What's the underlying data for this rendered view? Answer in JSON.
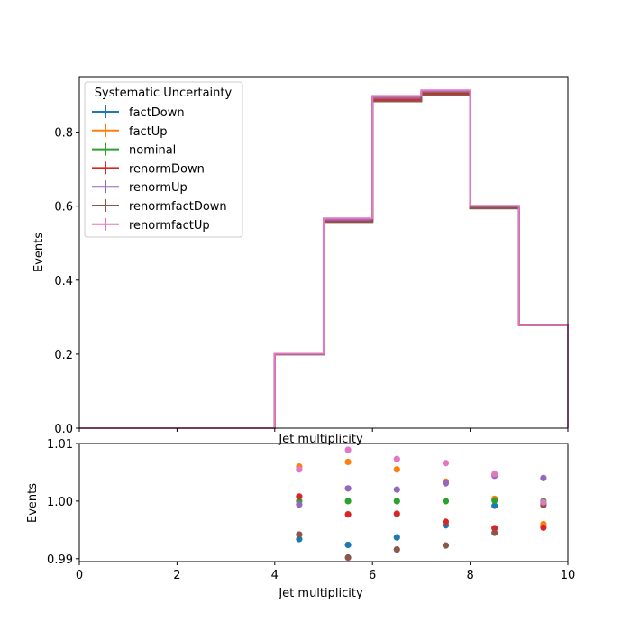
{
  "chart_data": [
    {
      "type": "step",
      "xlabel": "Jet multiplicity",
      "ylabel": "Events",
      "xlim": [
        0,
        10
      ],
      "ylim": [
        0,
        0.95
      ],
      "x_ticks": [
        0,
        2,
        4,
        6,
        8,
        10
      ],
      "y_ticks": [
        0.0,
        0.2,
        0.4,
        0.6,
        0.8
      ],
      "y_tick_labels": [
        "0.0",
        "0.2",
        "0.4",
        "0.6",
        "0.8"
      ],
      "bin_edges": [
        0,
        1,
        2,
        3,
        4,
        5,
        6,
        7,
        8,
        9,
        10
      ],
      "legend": {
        "title": "Systematic Uncertainty",
        "placement": "top-left"
      },
      "series": [
        {
          "name": "factDown",
          "color": "#1f77b4",
          "values": [
            0,
            0,
            0,
            0,
            0.199,
            0.558,
            0.884,
            0.904,
            0.594,
            0.279
          ]
        },
        {
          "name": "factUp",
          "color": "#ff7f0e",
          "values": [
            0,
            0,
            0,
            0,
            0.201,
            0.566,
            0.895,
            0.91,
            0.599,
            0.28
          ]
        },
        {
          "name": "nominal",
          "color": "#2ca02c",
          "values": [
            0,
            0,
            0,
            0,
            0.2,
            0.562,
            0.89,
            0.907,
            0.598,
            0.279
          ]
        },
        {
          "name": "renormDown",
          "color": "#d62728",
          "values": [
            0,
            0,
            0,
            0,
            0.2,
            0.561,
            0.888,
            0.904,
            0.595,
            0.278
          ]
        },
        {
          "name": "renormUp",
          "color": "#9467bd",
          "values": [
            0,
            0,
            0,
            0,
            0.2,
            0.563,
            0.892,
            0.91,
            0.6,
            0.28
          ]
        },
        {
          "name": "renormfactDown",
          "color": "#8c564b",
          "values": [
            0,
            0,
            0,
            0,
            0.199,
            0.557,
            0.883,
            0.9,
            0.594,
            0.279
          ]
        },
        {
          "name": "renormfactUp",
          "color": "#e377c2",
          "values": [
            0,
            0,
            0,
            0,
            0.201,
            0.567,
            0.898,
            0.913,
            0.601,
            0.279
          ]
        }
      ]
    },
    {
      "type": "scatter",
      "xlabel": "Jet multiplicity",
      "ylabel": "Events",
      "xlim": [
        0,
        10
      ],
      "ylim": [
        0.9895,
        1.01
      ],
      "x_ticks": [
        0,
        2,
        4,
        6,
        8,
        10
      ],
      "y_ticks": [
        0.99,
        1.0,
        1.01
      ],
      "y_tick_labels": [
        "0.99",
        "1.00",
        "1.01"
      ],
      "x": [
        4.5,
        5.5,
        6.5,
        7.5,
        8.5,
        9.5
      ],
      "series": [
        {
          "name": "factDown",
          "color": "#1f77b4",
          "values": [
            0.9934,
            0.9924,
            0.9937,
            0.9958,
            0.9992,
            0.9996
          ]
        },
        {
          "name": "factUp",
          "color": "#ff7f0e",
          "values": [
            1.006,
            1.0068,
            1.0055,
            1.0034,
            1.0004,
            0.996
          ]
        },
        {
          "name": "nominal",
          "color": "#2ca02c",
          "values": [
            1.0,
            1.0,
            1.0,
            1.0,
            1.0001,
            1.0
          ]
        },
        {
          "name": "renormDown",
          "color": "#d62728",
          "values": [
            1.0008,
            0.9977,
            0.9978,
            0.9964,
            0.9953,
            0.9954
          ]
        },
        {
          "name": "renormUp",
          "color": "#9467bd",
          "values": [
            0.9994,
            1.0022,
            1.002,
            1.0031,
            1.0044,
            1.004
          ]
        },
        {
          "name": "renormfactDown",
          "color": "#8c564b",
          "values": [
            0.9942,
            0.9902,
            0.9916,
            0.9923,
            0.9945,
            0.9993
          ]
        },
        {
          "name": "renormfactUp",
          "color": "#e377c2",
          "values": [
            1.0055,
            1.0089,
            1.0073,
            1.0066,
            1.0047,
            0.9998
          ]
        }
      ]
    }
  ]
}
